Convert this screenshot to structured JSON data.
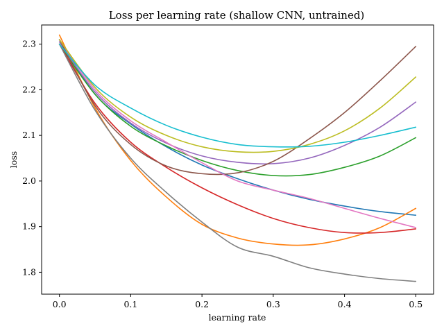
{
  "chart_data": {
    "type": "line",
    "title": "Loss per learning rate (shallow CNN, untrained)",
    "xlabel": "learning rate",
    "ylabel": "loss",
    "xlim": [
      -0.025,
      0.525
    ],
    "ylim": [
      1.752,
      2.342
    ],
    "xticks": [
      "0.0",
      "0.1",
      "0.2",
      "0.3",
      "0.4",
      "0.5"
    ],
    "xtick_values": [
      0.0,
      0.1,
      0.2,
      0.3,
      0.4,
      0.5
    ],
    "yticks": [
      "1.8",
      "1.9",
      "2.0",
      "2.1",
      "2.2",
      "2.3"
    ],
    "ytick_values": [
      1.8,
      1.9,
      2.0,
      2.1,
      2.2,
      2.3
    ],
    "grid": false,
    "x": [
      0.0,
      0.05,
      0.1,
      0.15,
      0.2,
      0.25,
      0.3,
      0.35,
      0.4,
      0.45,
      0.5
    ],
    "series": [
      {
        "color": "#1f77b4",
        "values": [
          2.31,
          2.19,
          2.125,
          2.075,
          2.035,
          2.005,
          1.98,
          1.96,
          1.945,
          1.933,
          1.925
        ]
      },
      {
        "color": "#ff7f0e",
        "values": [
          2.32,
          2.16,
          2.045,
          1.965,
          1.905,
          1.875,
          1.862,
          1.86,
          1.873,
          1.898,
          1.94
        ]
      },
      {
        "color": "#2ca02c",
        "values": [
          2.3,
          2.19,
          2.12,
          2.077,
          2.045,
          2.023,
          2.012,
          2.014,
          2.03,
          2.055,
          2.095
        ]
      },
      {
        "color": "#d62728",
        "values": [
          2.3,
          2.17,
          2.085,
          2.03,
          1.985,
          1.948,
          1.918,
          1.898,
          1.887,
          1.887,
          1.895
        ]
      },
      {
        "color": "#9467bd",
        "values": [
          2.305,
          2.195,
          2.127,
          2.083,
          2.055,
          2.041,
          2.038,
          2.05,
          2.078,
          2.118,
          2.173
        ]
      },
      {
        "color": "#8c564b",
        "values": [
          2.31,
          2.165,
          2.08,
          2.033,
          2.016,
          2.018,
          2.043,
          2.092,
          2.15,
          2.22,
          2.295
        ]
      },
      {
        "color": "#e377c2",
        "values": [
          2.31,
          2.2,
          2.132,
          2.085,
          2.04,
          2.0,
          1.98,
          1.962,
          1.94,
          1.918,
          1.898
        ]
      },
      {
        "color": "#7f7f7f",
        "values": [
          2.3,
          2.155,
          2.05,
          1.975,
          1.91,
          1.855,
          1.835,
          1.81,
          1.796,
          1.786,
          1.78
        ]
      },
      {
        "color": "#bcbd22",
        "values": [
          2.31,
          2.205,
          2.14,
          2.1,
          2.075,
          2.064,
          2.065,
          2.08,
          2.11,
          2.16,
          2.228
        ]
      },
      {
        "color": "#17becf",
        "values": [
          2.3,
          2.21,
          2.16,
          2.122,
          2.096,
          2.08,
          2.075,
          2.076,
          2.085,
          2.1,
          2.118
        ]
      }
    ]
  }
}
